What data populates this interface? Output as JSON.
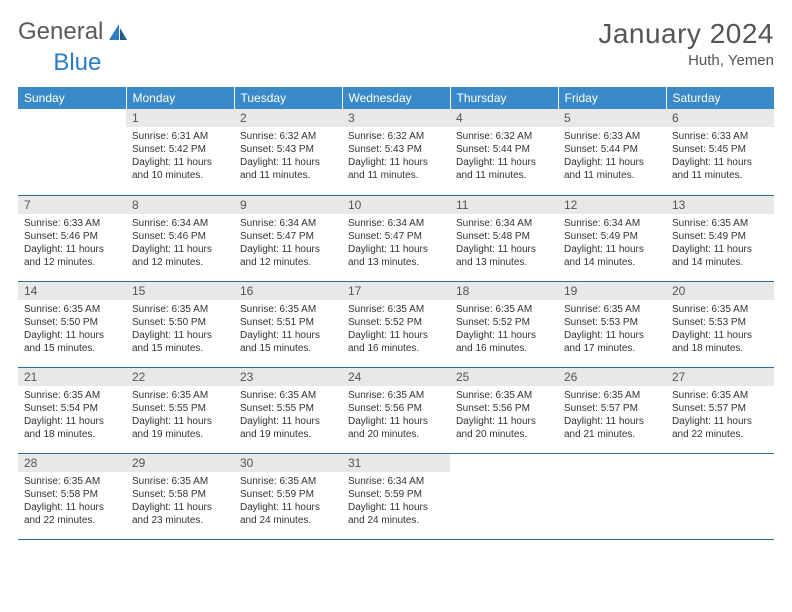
{
  "logo": {
    "text1": "General",
    "text2": "Blue"
  },
  "title": "January 2024",
  "location": "Huth, Yemen",
  "header_bg": "#3a8ac9",
  "daynum_bg": "#e8e8e8",
  "border_color": "#2b6fa3",
  "weekdays": [
    "Sunday",
    "Monday",
    "Tuesday",
    "Wednesday",
    "Thursday",
    "Friday",
    "Saturday"
  ],
  "weeks": [
    [
      null,
      {
        "n": "1",
        "sr": "6:31 AM",
        "ss": "5:42 PM",
        "dl": "11 hours and 10 minutes."
      },
      {
        "n": "2",
        "sr": "6:32 AM",
        "ss": "5:43 PM",
        "dl": "11 hours and 11 minutes."
      },
      {
        "n": "3",
        "sr": "6:32 AM",
        "ss": "5:43 PM",
        "dl": "11 hours and 11 minutes."
      },
      {
        "n": "4",
        "sr": "6:32 AM",
        "ss": "5:44 PM",
        "dl": "11 hours and 11 minutes."
      },
      {
        "n": "5",
        "sr": "6:33 AM",
        "ss": "5:44 PM",
        "dl": "11 hours and 11 minutes."
      },
      {
        "n": "6",
        "sr": "6:33 AM",
        "ss": "5:45 PM",
        "dl": "11 hours and 11 minutes."
      }
    ],
    [
      {
        "n": "7",
        "sr": "6:33 AM",
        "ss": "5:46 PM",
        "dl": "11 hours and 12 minutes."
      },
      {
        "n": "8",
        "sr": "6:34 AM",
        "ss": "5:46 PM",
        "dl": "11 hours and 12 minutes."
      },
      {
        "n": "9",
        "sr": "6:34 AM",
        "ss": "5:47 PM",
        "dl": "11 hours and 12 minutes."
      },
      {
        "n": "10",
        "sr": "6:34 AM",
        "ss": "5:47 PM",
        "dl": "11 hours and 13 minutes."
      },
      {
        "n": "11",
        "sr": "6:34 AM",
        "ss": "5:48 PM",
        "dl": "11 hours and 13 minutes."
      },
      {
        "n": "12",
        "sr": "6:34 AM",
        "ss": "5:49 PM",
        "dl": "11 hours and 14 minutes."
      },
      {
        "n": "13",
        "sr": "6:35 AM",
        "ss": "5:49 PM",
        "dl": "11 hours and 14 minutes."
      }
    ],
    [
      {
        "n": "14",
        "sr": "6:35 AM",
        "ss": "5:50 PM",
        "dl": "11 hours and 15 minutes."
      },
      {
        "n": "15",
        "sr": "6:35 AM",
        "ss": "5:50 PM",
        "dl": "11 hours and 15 minutes."
      },
      {
        "n": "16",
        "sr": "6:35 AM",
        "ss": "5:51 PM",
        "dl": "11 hours and 15 minutes."
      },
      {
        "n": "17",
        "sr": "6:35 AM",
        "ss": "5:52 PM",
        "dl": "11 hours and 16 minutes."
      },
      {
        "n": "18",
        "sr": "6:35 AM",
        "ss": "5:52 PM",
        "dl": "11 hours and 16 minutes."
      },
      {
        "n": "19",
        "sr": "6:35 AM",
        "ss": "5:53 PM",
        "dl": "11 hours and 17 minutes."
      },
      {
        "n": "20",
        "sr": "6:35 AM",
        "ss": "5:53 PM",
        "dl": "11 hours and 18 minutes."
      }
    ],
    [
      {
        "n": "21",
        "sr": "6:35 AM",
        "ss": "5:54 PM",
        "dl": "11 hours and 18 minutes."
      },
      {
        "n": "22",
        "sr": "6:35 AM",
        "ss": "5:55 PM",
        "dl": "11 hours and 19 minutes."
      },
      {
        "n": "23",
        "sr": "6:35 AM",
        "ss": "5:55 PM",
        "dl": "11 hours and 19 minutes."
      },
      {
        "n": "24",
        "sr": "6:35 AM",
        "ss": "5:56 PM",
        "dl": "11 hours and 20 minutes."
      },
      {
        "n": "25",
        "sr": "6:35 AM",
        "ss": "5:56 PM",
        "dl": "11 hours and 20 minutes."
      },
      {
        "n": "26",
        "sr": "6:35 AM",
        "ss": "5:57 PM",
        "dl": "11 hours and 21 minutes."
      },
      {
        "n": "27",
        "sr": "6:35 AM",
        "ss": "5:57 PM",
        "dl": "11 hours and 22 minutes."
      }
    ],
    [
      {
        "n": "28",
        "sr": "6:35 AM",
        "ss": "5:58 PM",
        "dl": "11 hours and 22 minutes."
      },
      {
        "n": "29",
        "sr": "6:35 AM",
        "ss": "5:58 PM",
        "dl": "11 hours and 23 minutes."
      },
      {
        "n": "30",
        "sr": "6:35 AM",
        "ss": "5:59 PM",
        "dl": "11 hours and 24 minutes."
      },
      {
        "n": "31",
        "sr": "6:34 AM",
        "ss": "5:59 PM",
        "dl": "11 hours and 24 minutes."
      },
      null,
      null,
      null
    ]
  ],
  "labels": {
    "sunrise": "Sunrise:",
    "sunset": "Sunset:",
    "daylight": "Daylight:"
  }
}
